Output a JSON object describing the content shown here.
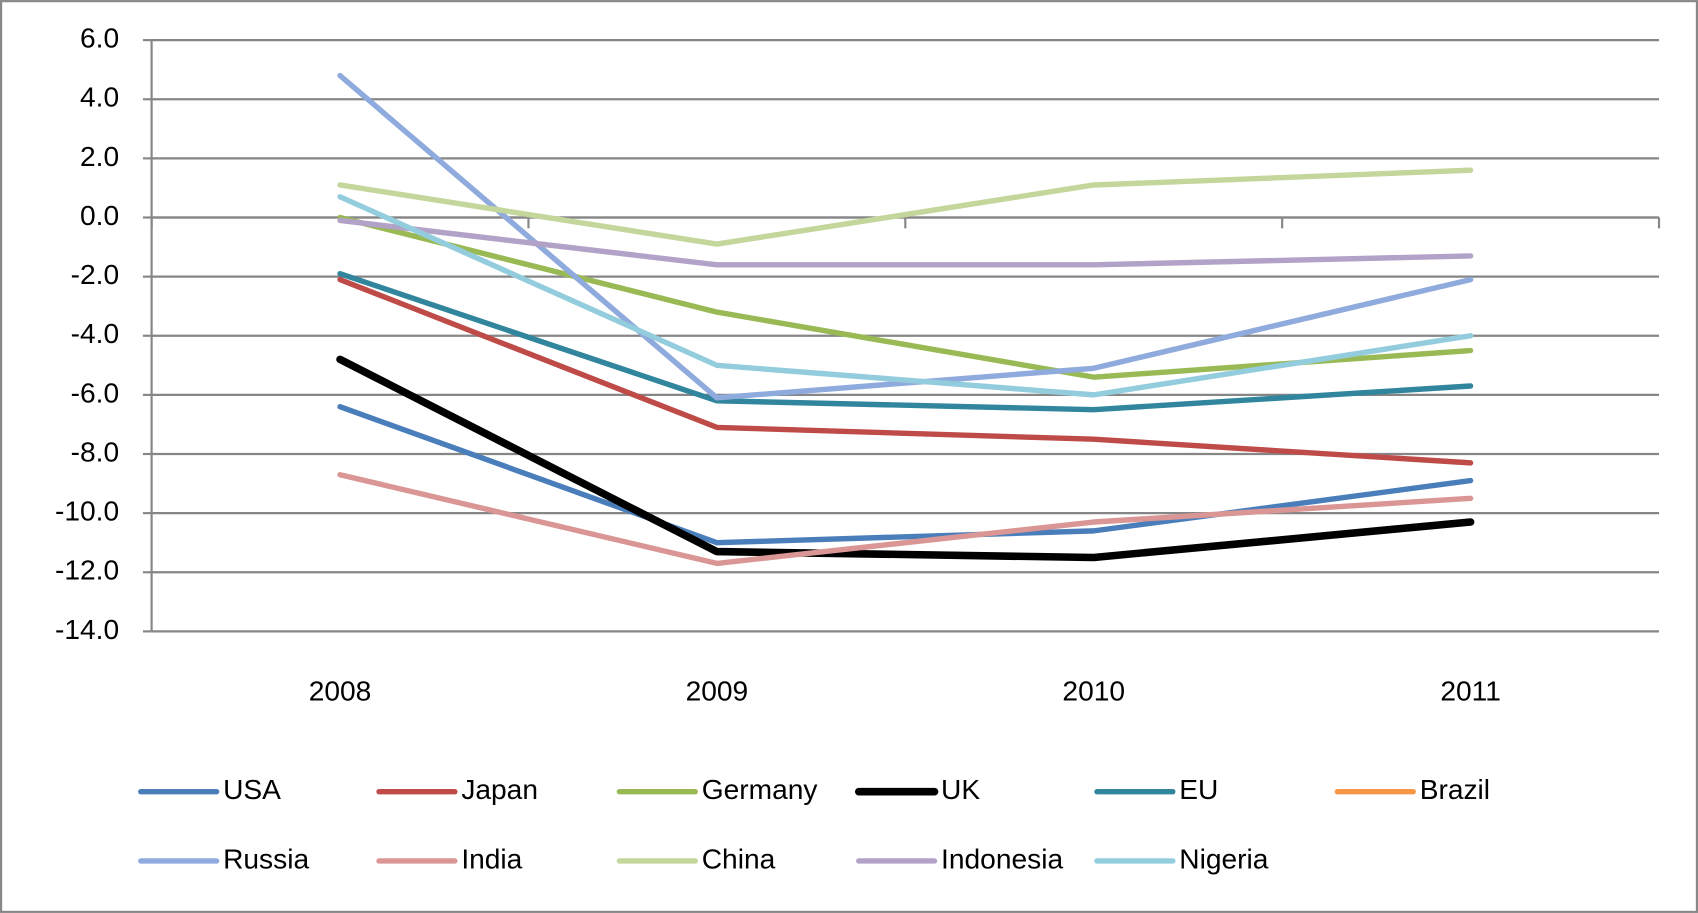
{
  "chart_data": {
    "type": "line",
    "categories": [
      "2008",
      "2009",
      "2010",
      "2011"
    ],
    "ylim": [
      -14,
      6
    ],
    "yticks": [
      {
        "value": -14,
        "label": "-14.0"
      },
      {
        "value": -12,
        "label": "-12.0"
      },
      {
        "value": -10,
        "label": "-10.0"
      },
      {
        "value": -8,
        "label": "-8.0"
      },
      {
        "value": -6,
        "label": "-6.0"
      },
      {
        "value": -4,
        "label": "-4.0"
      },
      {
        "value": -2,
        "label": "-2.0"
      },
      {
        "value": 0,
        "label": "0.0"
      },
      {
        "value": 2,
        "label": "2.0"
      },
      {
        "value": 4,
        "label": "4.0"
      },
      {
        "value": 6,
        "label": "6.0"
      }
    ],
    "grid": true,
    "legend": "bottom",
    "series": [
      {
        "name": "USA",
        "color": "#4a7ebb",
        "values": [
          -6.4,
          -11.0,
          -10.6,
          -8.9
        ]
      },
      {
        "name": "Japan",
        "color": "#be4b48",
        "values": [
          -2.1,
          -7.1,
          -7.5,
          -8.3
        ]
      },
      {
        "name": "Germany",
        "color": "#98b954",
        "values": [
          0.0,
          -3.2,
          -5.4,
          -4.5
        ]
      },
      {
        "name": "UK",
        "color": "#000000",
        "values": [
          -4.8,
          -11.3,
          -11.5,
          -10.3
        ]
      },
      {
        "name": "EU",
        "color": "#31859c",
        "values": [
          -1.9,
          -6.2,
          -6.5,
          -5.7
        ]
      },
      {
        "name": "Brazil",
        "color": "#f79646",
        "values": [
          null,
          null,
          null,
          null
        ]
      },
      {
        "name": "Russia",
        "color": "#8faadc",
        "values": [
          4.8,
          -6.1,
          -5.1,
          -2.1
        ]
      },
      {
        "name": "India",
        "color": "#d99694",
        "values": [
          -8.7,
          -11.7,
          -10.3,
          -9.5
        ]
      },
      {
        "name": "China",
        "color": "#c3d69b",
        "values": [
          1.1,
          -0.9,
          1.1,
          1.6
        ]
      },
      {
        "name": "Indonesia",
        "color": "#b3a2c7",
        "values": [
          -0.1,
          -1.6,
          -1.6,
          -1.3
        ]
      },
      {
        "name": "Nigeria",
        "color": "#93cddd",
        "values": [
          0.7,
          -5.0,
          -6.0,
          -4.0
        ]
      }
    ]
  }
}
